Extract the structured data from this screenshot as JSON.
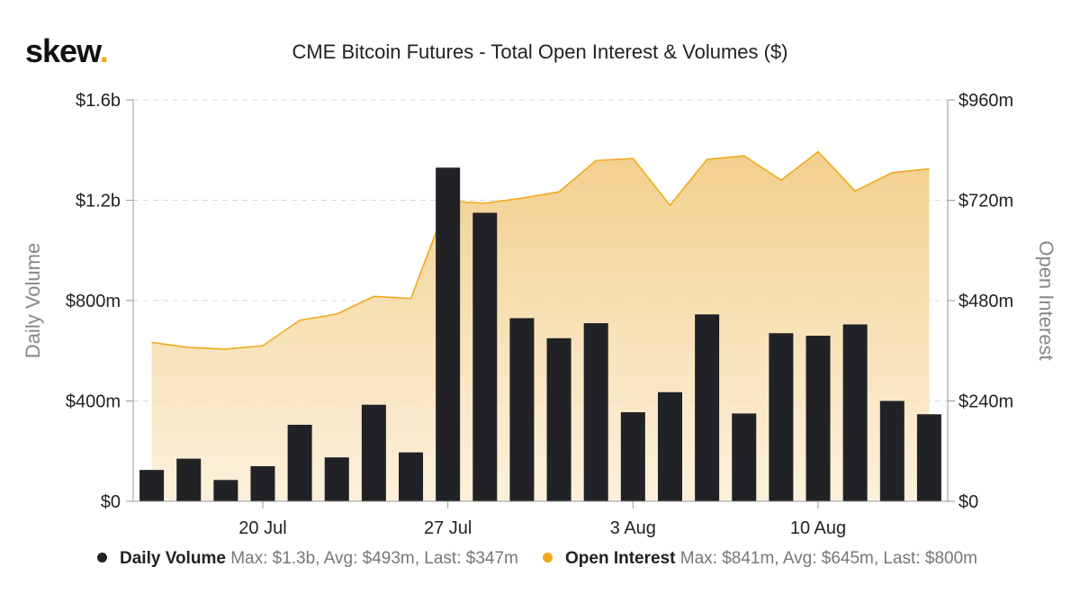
{
  "brand": {
    "name": "skew",
    "dot": "."
  },
  "chart_data": {
    "type": "bar+area",
    "title": "CME Bitcoin Futures - Total Open Interest & Volumes ($)",
    "x_tick_labels": [
      "20 Jul",
      "27 Jul",
      "3 Aug",
      "10 Aug"
    ],
    "x_tick_indices": [
      3,
      8,
      13,
      18
    ],
    "left_axis": {
      "label": "Daily Volume",
      "ylim": [
        0,
        1600
      ],
      "tick_values": [
        0,
        400,
        800,
        1200,
        1600
      ],
      "tick_labels": [
        "$0",
        "$400m",
        "$800m",
        "$1.2b",
        "$1.6b"
      ]
    },
    "right_axis": {
      "label": "Open Interest",
      "ylim": [
        0,
        960
      ],
      "tick_values": [
        0,
        240,
        480,
        720,
        960
      ],
      "tick_labels": [
        "$0",
        "$240m",
        "$480m",
        "$720m",
        "$960m"
      ]
    },
    "grid": true,
    "series": [
      {
        "name": "Daily Volume",
        "kind": "bar",
        "axis": "left",
        "color": "#212226",
        "values": [
          125,
          170,
          85,
          140,
          305,
          175,
          385,
          195,
          1330,
          1150,
          730,
          650,
          710,
          355,
          435,
          745,
          350,
          670,
          660,
          705,
          400,
          347
        ]
      },
      {
        "name": "Open Interest",
        "kind": "area",
        "axis": "right",
        "color": "#f0a91e",
        "values": [
          380,
          368,
          364,
          372,
          433,
          448,
          490,
          485,
          718,
          713,
          725,
          740,
          815,
          820,
          708,
          818,
          826,
          768,
          836,
          742,
          786,
          795
        ]
      }
    ],
    "legend": [
      {
        "name": "Daily Volume",
        "stats": "Max: $1.3b, Avg: $493m, Last: $347m",
        "color": "#212226"
      },
      {
        "name": "Open Interest",
        "stats": "Max: $841m, Avg: $645m, Last: $800m",
        "color": "#f0a91e"
      }
    ]
  }
}
